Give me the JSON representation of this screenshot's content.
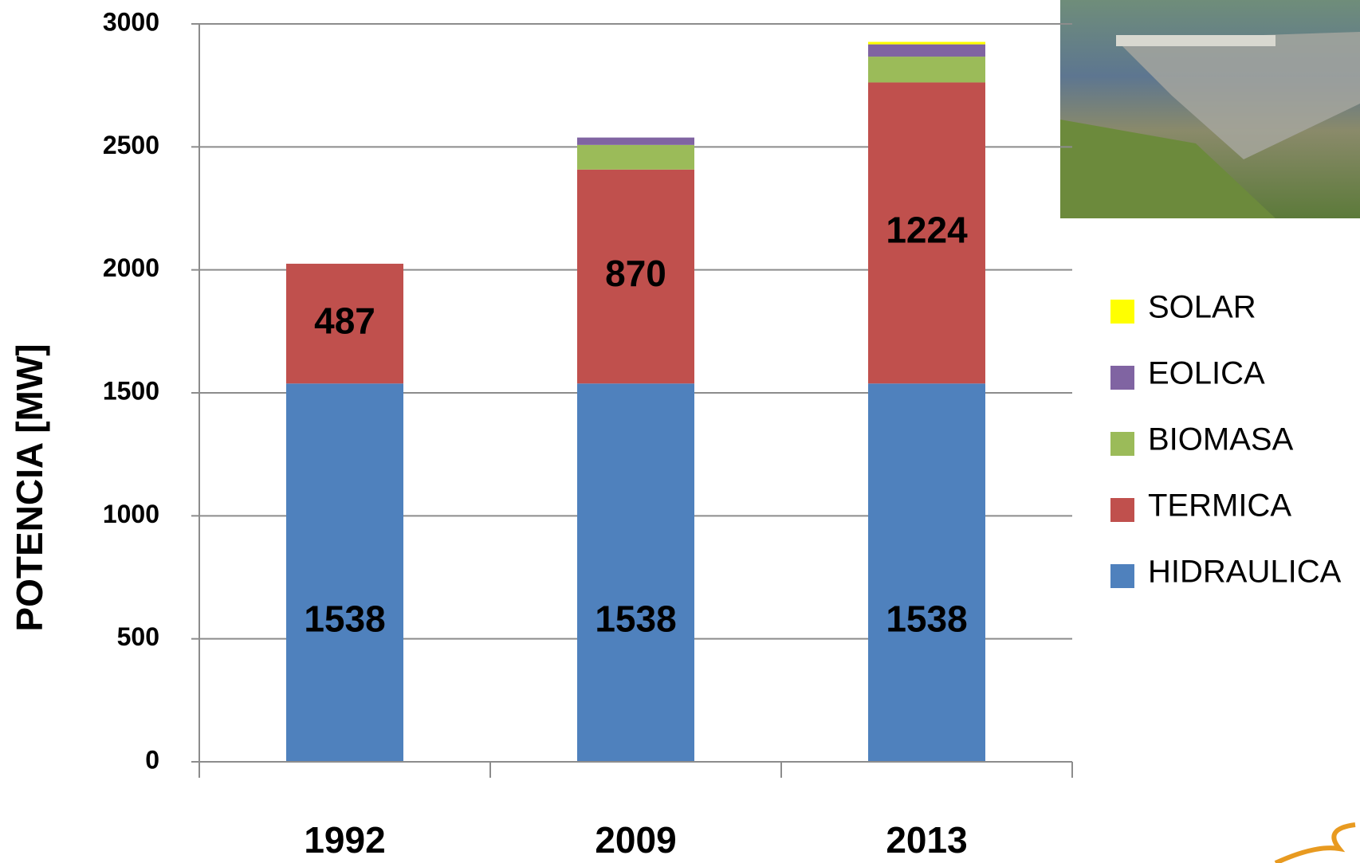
{
  "chart_data": {
    "type": "stacked_bar",
    "y_label": "POTENCIA [MW]",
    "categories": [
      "1992",
      "2009",
      "2013"
    ],
    "series": [
      {
        "name": "HIDRAULICA",
        "color": "#4f81bd",
        "values": [
          1538,
          1538,
          1538
        ],
        "data_labels": true
      },
      {
        "name": "TERMICA",
        "color": "#c0504d",
        "values": [
          487,
          870,
          1224
        ],
        "data_labels": true
      },
      {
        "name": "BIOMASA",
        "color": "#9bbb59",
        "values": [
          0,
          100,
          105
        ],
        "data_labels": false
      },
      {
        "name": "EOLICA",
        "color": "#8064a2",
        "values": [
          0,
          30,
          50
        ],
        "data_labels": false
      },
      {
        "name": "SOLAR",
        "color": "#ffff00",
        "values": [
          0,
          0,
          10
        ],
        "data_labels": false
      }
    ],
    "ylim": [
      0,
      3000
    ],
    "yticks": [
      0,
      500,
      1000,
      1500,
      2000,
      2500,
      3000
    ],
    "grid": true,
    "legend": "right"
  }
}
